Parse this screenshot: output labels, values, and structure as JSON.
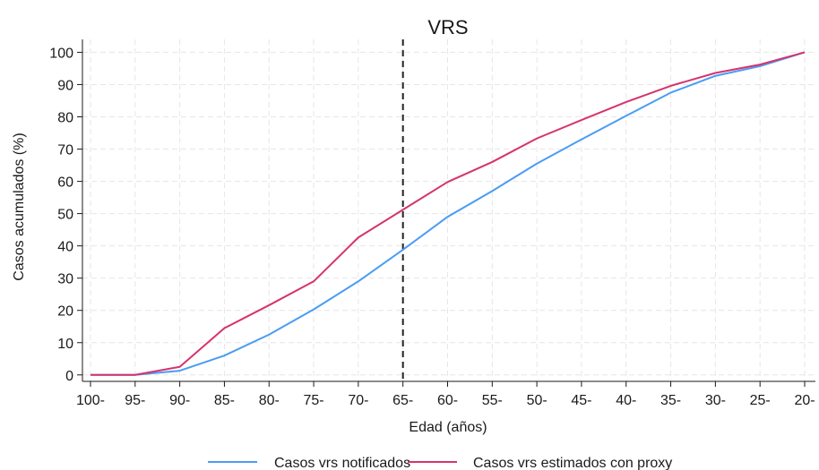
{
  "chart_data": {
    "type": "line",
    "title": "VRS",
    "xlabel": "Edad (años)",
    "ylabel": "Casos acumulados (%)",
    "categories": [
      "100-",
      "95-",
      "90-",
      "85-",
      "80-",
      "75-",
      "70-",
      "65-",
      "60-",
      "55-",
      "50-",
      "45-",
      "40-",
      "35-",
      "30-",
      "25-",
      "20-"
    ],
    "yticks": [
      "0",
      "10",
      "20",
      "30",
      "40",
      "50",
      "60",
      "70",
      "80",
      "90",
      "100"
    ],
    "ylim": [
      -2,
      104
    ],
    "grid": true,
    "legend_position": "bottom",
    "reference_line": {
      "category": "65-",
      "style": "dashed",
      "color": "#222222"
    },
    "series": [
      {
        "name": "Casos vrs notificados",
        "color": "#4a9cf5",
        "values": [
          0,
          0,
          1.3,
          6,
          12.5,
          20.3,
          29,
          38.8,
          49,
          57,
          65.5,
          73,
          80.3,
          87.5,
          92.7,
          95.7,
          100
        ]
      },
      {
        "name": "Casos vrs estimados con proxy",
        "color": "#d6336c",
        "values": [
          0,
          0,
          2.5,
          14.5,
          21.6,
          29,
          42.6,
          51.2,
          59.8,
          66,
          73.3,
          79,
          84.6,
          89.6,
          93.6,
          96.2,
          100
        ]
      }
    ]
  }
}
